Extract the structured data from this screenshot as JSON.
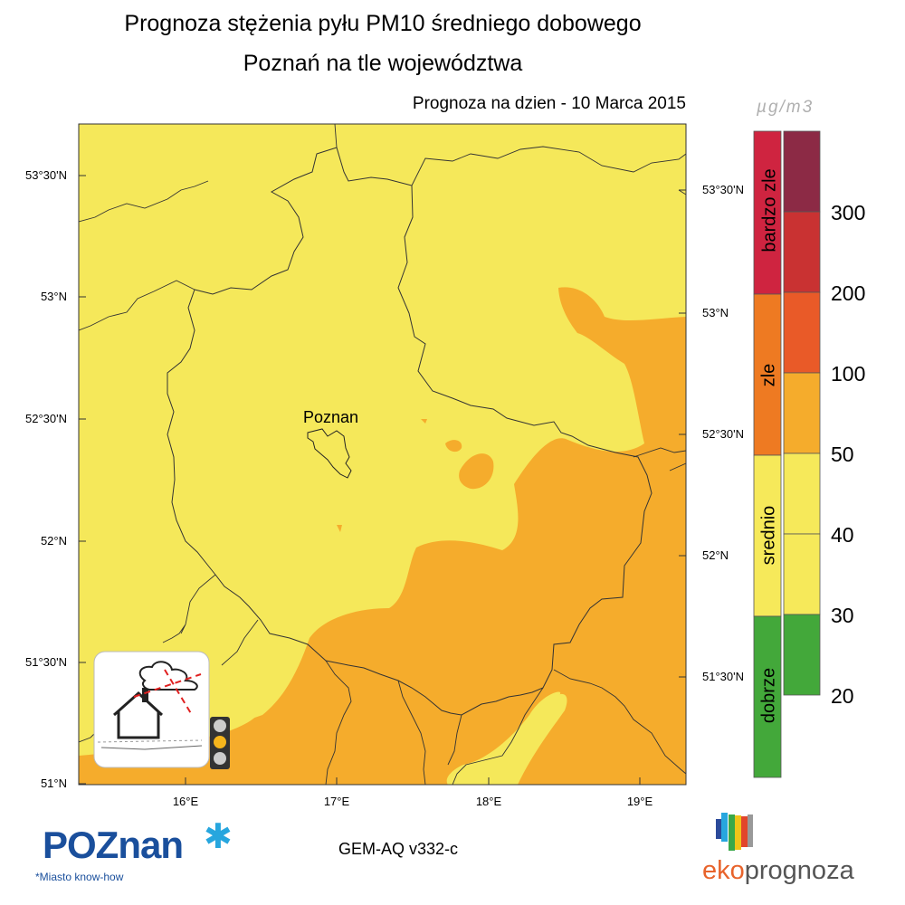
{
  "header": {
    "title_line1": "Prognoza stężenia pyłu PM10 średniego dobowego",
    "title_line2": "Poznań na tle województwa",
    "forecast_date": "Prognoza na dzien -  10 Marca 2015"
  },
  "map": {
    "city_label": "Poznan",
    "lat_labels_left": [
      "53°30'N",
      "53°N",
      "52°30'N",
      "52°N",
      "51°30'N",
      "51°N"
    ],
    "lat_labels_right": [
      "53°30'N",
      "53°N",
      "52°30'N",
      "52°N",
      "51°30'N"
    ],
    "lon_labels": [
      "16°E",
      "17°E",
      "18°E",
      "19°E"
    ],
    "colors": {
      "average": "#f5e85a",
      "bad": "#f5ac2c",
      "border": "#333333"
    }
  },
  "legend": {
    "unit": "µg/m3",
    "categories": [
      {
        "label": "bardzo zle",
        "color": "#cf2440"
      },
      {
        "label": "zle",
        "color": "#ee7a22"
      },
      {
        "label": "srednio",
        "color": "#f6e95a"
      },
      {
        "label": "dobrze",
        "color": "#43a83a"
      }
    ],
    "bins": [
      {
        "color": "#8c2a45"
      },
      {
        "color": "#c93232"
      },
      {
        "color": "#e95a28"
      },
      {
        "color": "#f5ac2c"
      },
      {
        "color": "#f6e95a"
      },
      {
        "color": "#f6e95a"
      },
      {
        "color": "#43a83a"
      }
    ],
    "thresholds": [
      "300",
      "200",
      "100",
      "50",
      "40",
      "30",
      "20"
    ]
  },
  "footer": {
    "model": "GEM-AQ v332-c",
    "poznan_logo": "POZnan",
    "poznan_tagline": "*Miasto know-how",
    "ekoprognoza_a": "eko",
    "ekoprognoza_b": "prognoza"
  },
  "icons": {
    "pictogram": "house-smog-icon",
    "traffic_light": "traffic-light-icon",
    "brand": "ekoprognoza-bars-icon"
  }
}
